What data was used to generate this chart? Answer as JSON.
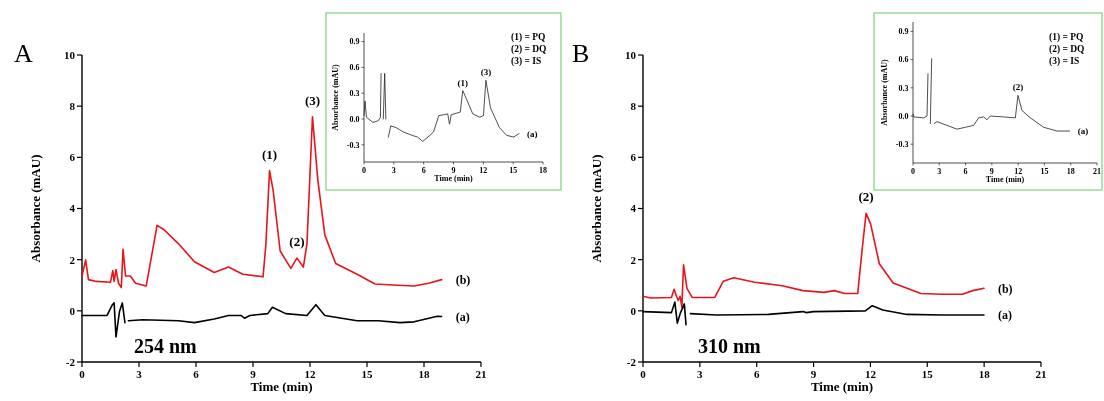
{
  "chart_data": [
    {
      "type": "line",
      "title": "A",
      "xlabel": "Time (min)",
      "ylabel": "Absorbance (mAU)",
      "xlim": [
        0,
        21
      ],
      "ylim": [
        -2,
        10
      ],
      "xticks": [
        0,
        3,
        6,
        9,
        12,
        15,
        18,
        21
      ],
      "yticks": [
        -2,
        0,
        2,
        4,
        6,
        8,
        10
      ],
      "annotations": [
        "254 nm",
        {
          "text": "(1)",
          "x": 9.87,
          "y": 5.48
        },
        {
          "text": "(2)",
          "x": 11.31,
          "y": 2.06
        },
        {
          "text": "(3)",
          "x": 12.13,
          "y": 7.58
        }
      ],
      "series": [
        {
          "name": "(b)",
          "color": "#e8141b",
          "x": [
            0,
            0.19,
            0.34,
            0.75,
            1.5,
            1.62,
            1.69,
            1.79,
            1.92,
            2.07,
            2.16,
            2.29,
            2.54,
            2.82,
            3.38,
            3.95,
            4.32,
            5.08,
            5.92,
            6.96,
            7.71,
            8.46,
            9.53,
            9.68,
            9.87,
            10.06,
            10.43,
            10.99,
            11.31,
            11.65,
            11.84,
            12.13,
            12.41,
            12.78,
            13.35,
            14.48,
            15.42,
            16.36,
            17.48,
            18.24,
            18.93
          ],
          "values": [
            1.36,
            1.99,
            1.22,
            1.15,
            1.12,
            1.57,
            1.15,
            1.61,
            1.08,
            0.91,
            2.41,
            1.36,
            1.36,
            1.08,
            0.97,
            3.34,
            3.17,
            2.62,
            1.92,
            1.5,
            1.71,
            1.43,
            1.33,
            2.62,
            5.48,
            4.71,
            2.34,
            1.66,
            2.06,
            1.71,
            2.62,
            7.58,
            5.13,
            2.97,
            1.85,
            1.43,
            1.05,
            1.01,
            0.97,
            1.08,
            1.22
          ]
        },
        {
          "name": "(a)",
          "color": "#000000",
          "x": [
            0,
            1.32,
            1.6,
            1.69,
            1.79,
            1.97,
            2.12,
            2.26,
            2.31,
            2.44,
            3.2,
            5.08,
            5.92,
            6.96,
            7.71,
            8.37,
            8.55,
            8.84,
            9.78,
            10.02,
            10.72,
            11.84,
            12.31,
            12.78,
            14.48,
            15.6,
            16.73,
            17.48,
            18.7,
            18.93
          ],
          "values": [
            -0.18,
            -0.18,
            0.24,
            0.31,
            -1.02,
            -0.04,
            0.31,
            -0.46,
            null,
            -0.39,
            -0.35,
            -0.39,
            -0.46,
            -0.32,
            -0.18,
            -0.18,
            -0.29,
            -0.18,
            -0.11,
            0.14,
            -0.11,
            -0.18,
            0.24,
            -0.18,
            -0.39,
            -0.39,
            -0.46,
            -0.43,
            -0.21,
            -0.22
          ]
        }
      ]
    },
    {
      "type": "line",
      "xlabel": "Time (min)",
      "ylabel": "Absorbance (mAU)",
      "xlim": [
        0,
        18
      ],
      "ylim": [
        -0.5,
        1.0
      ],
      "xticks": [
        0,
        3,
        6,
        9,
        12,
        15,
        18
      ],
      "yticks": [
        -0.3,
        {
          "value": 0,
          "label": "0.0"
        },
        0.3,
        0.6,
        0.9
      ],
      "annotations": [
        "(1) = PQ",
        "(2) = DQ",
        "(3) = IS",
        {
          "text": "(1)",
          "x": 9.93,
          "y": 0.33
        },
        {
          "text": "(3)",
          "x": 12.26,
          "y": 0.45
        }
      ],
      "series": [
        {
          "name": "(a)",
          "color": "#222222",
          "x": [
            0,
            0.1,
            0.25,
            0.9,
            1.43,
            1.65,
            1.72,
            1.83,
            1.94,
            2.08,
            2.2,
            2.33,
            2.45,
            2.69,
            3.23,
            3.94,
            4.84,
            5.38,
            5.91,
            6.63,
            6.99,
            7.53,
            8.06,
            8.42,
            8.6,
            8.78,
            9.68,
            9.93,
            10.39,
            10.93,
            11.65,
            12.01,
            12.26,
            12.72,
            13.62,
            14.34,
            15.05,
            15.59
          ],
          "values": [
            0.04,
            0.21,
            0.02,
            -0.04,
            -0.02,
            0.02,
            0.53,
            null,
            0,
            0.53,
            0,
            null,
            -0.21,
            -0.08,
            -0.1,
            -0.15,
            -0.19,
            -0.21,
            -0.26,
            -0.19,
            -0.15,
            0.04,
            0.05,
            0.06,
            -0.06,
            0.05,
            0.08,
            0.33,
            0.21,
            0.06,
            0.02,
            0.04,
            0.45,
            0.13,
            -0.1,
            -0.19,
            -0.21,
            -0.17
          ]
        }
      ]
    },
    {
      "type": "line",
      "title": "B",
      "xlabel": "Time (min)",
      "ylabel": "Absorbance (mAU)",
      "xlim": [
        0,
        21
      ],
      "ylim": [
        -2,
        10
      ],
      "xticks": [
        0,
        3,
        6,
        9,
        12,
        15,
        18,
        21
      ],
      "yticks": [
        -2,
        0,
        2,
        4,
        6,
        8,
        10
      ],
      "annotations": [
        "310 nm",
        {
          "text": "(2)",
          "x": 11.77,
          "y": 3.81
        }
      ],
      "series": [
        {
          "name": "(b)",
          "color": "#e8141b",
          "x": [
            0,
            0.4,
            1.5,
            1.64,
            1.78,
            1.86,
            1.96,
            2.05,
            2.14,
            2.32,
            2.6,
            3.78,
            4.24,
            4.79,
            5.89,
            7.35,
            8.44,
            9.54,
            10.09,
            10.64,
            11.33,
            11.55,
            11.77,
            12.01,
            12.47,
            13.2,
            14.66,
            15.76,
            16.85,
            17.4,
            17.99
          ],
          "values": [
            0.57,
            0.5,
            0.52,
            0.84,
            0.54,
            0.41,
            0.57,
            0.14,
            1.8,
            0.88,
            0.52,
            0.52,
            1.16,
            1.29,
            1.12,
            0.98,
            0.79,
            0.72,
            0.79,
            0.68,
            0.68,
            2.31,
            3.81,
            3.4,
            1.84,
            1.09,
            0.68,
            0.65,
            0.65,
            0.79,
            0.88
          ]
        },
        {
          "name": "(a)",
          "color": "#000000",
          "x": [
            0,
            1.5,
            1.68,
            1.81,
            1.96,
            2.18,
            2.27,
            2.34,
            2.5,
            3.87,
            6.62,
            8.44,
            8.62,
            8.99,
            11.73,
            12.1,
            12.65,
            13.93,
            15.76,
            17.99
          ],
          "values": [
            -0.03,
            -0.07,
            0.34,
            -0.48,
            -0.11,
            0.27,
            -0.54,
            null,
            -0.11,
            -0.16,
            -0.14,
            -0.03,
            -0.07,
            -0.03,
            0,
            0.2,
            0.03,
            -0.14,
            -0.16,
            -0.16
          ]
        }
      ]
    },
    {
      "type": "line",
      "xlabel": "Time (min)",
      "ylabel": "Absorbance (mAU)",
      "xlim": [
        0,
        21
      ],
      "ylim": [
        -0.5,
        1.0
      ],
      "xticks": [
        0,
        3,
        6,
        9,
        12,
        15,
        18,
        21
      ],
      "yticks": [
        -0.3,
        {
          "value": 0,
          "label": "0.0"
        },
        0.3,
        0.6,
        0.9
      ],
      "annotations": [
        "(1) = PQ",
        "(2) = DQ",
        "(3) = IS",
        {
          "text": "(2)",
          "x": 11.98,
          "y": 0.22
        }
      ],
      "series": [
        {
          "name": "(a)",
          "color": "#222222",
          "x": [
            0,
            0.1,
            1.22,
            1.6,
            1.71,
            1.83,
            1.98,
            2.13,
            2.28,
            2.43,
            2.74,
            3.88,
            5.02,
            5.97,
            6.92,
            7.49,
            8.06,
            8.44,
            8.82,
            10.35,
            11.68,
            11.98,
            12.43,
            13.39,
            14.91,
            16.43,
            17.88
          ],
          "values": [
            0.02,
            -0.01,
            -0.02,
            0,
            0.45,
            null,
            -0.08,
            0.61,
            null,
            -0.08,
            -0.06,
            -0.1,
            -0.14,
            -0.12,
            -0.1,
            -0.02,
            -0.01,
            -0.04,
            0,
            -0.01,
            -0.02,
            0.22,
            0.06,
            -0.02,
            -0.12,
            -0.16,
            -0.16
          ]
        }
      ]
    }
  ]
}
